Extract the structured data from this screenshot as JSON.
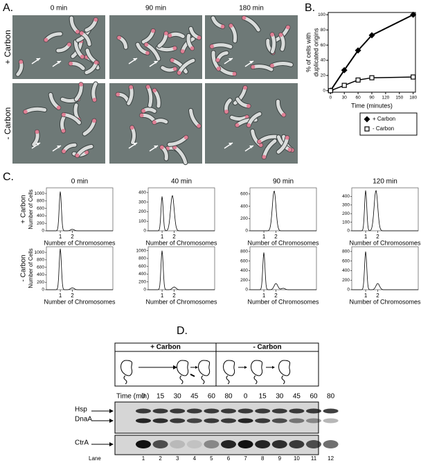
{
  "panel_a": {
    "label": "A.",
    "columns": [
      "0 min",
      "90 min",
      "180 min"
    ],
    "rows": [
      "+ Carbon",
      "- Carbon"
    ]
  },
  "chart_data": {
    "type": "line",
    "label": "B.",
    "x": [
      0,
      30,
      60,
      90,
      180
    ],
    "xlabel": "Time (minutes)",
    "ylabel": [
      "% of cells with",
      "duplicated origins"
    ],
    "xlim": [
      -5,
      185
    ],
    "ylim": [
      -2,
      103
    ],
    "xticks": [
      0,
      30,
      60,
      90,
      120,
      150,
      180
    ],
    "yticks": [
      0,
      20,
      40,
      60,
      80,
      100
    ],
    "legend": "below",
    "series": [
      {
        "name": "+ Carbon",
        "color": "#000000",
        "marker": "diamond",
        "values": [
          0,
          27,
          53,
          73,
          100
        ]
      },
      {
        "name": "- Carbon",
        "color": "#000000",
        "marker": "square",
        "values": [
          0,
          7,
          14,
          17,
          18
        ]
      }
    ]
  },
  "panel_c": {
    "label": "C.",
    "columns": [
      "0 min",
      "40 min",
      "90 min",
      "120 min"
    ],
    "rows": [
      "+ Carbon",
      "- Carbon"
    ],
    "ylabel": "Number of Cells",
    "xlabel": "Number of Chromosomes",
    "xlim": [
      -0.15,
      5.35
    ],
    "xticks": [
      1,
      2
    ],
    "plots": [
      [
        {
          "ylim": [
            0,
            1150
          ],
          "yticks": [
            0,
            200,
            400,
            600,
            800,
            1000
          ],
          "peaks": [
            {
              "x": 1,
              "count": 1050
            },
            {
              "x": 2,
              "count": 40
            }
          ]
        },
        {
          "ylim": [
            0,
            450
          ],
          "yticks": [
            0,
            100,
            200,
            300,
            400
          ],
          "peaks": [
            {
              "x": 1,
              "count": 360
            },
            {
              "x": 1.85,
              "count": 370
            }
          ]
        },
        {
          "ylim": [
            0,
            700
          ],
          "yticks": [
            0,
            200,
            400,
            600
          ],
          "peaks": [
            {
              "x": 1.85,
              "count": 650
            }
          ]
        },
        {
          "ylim": [
            0,
            500
          ],
          "yticks": [
            0,
            100,
            200,
            300,
            400
          ],
          "peaks": [
            {
              "x": 1,
              "count": 470
            },
            {
              "x": 1.85,
              "count": 470
            }
          ]
        }
      ],
      [
        {
          "ylim": [
            0,
            1150
          ],
          "yticks": [
            0,
            200,
            400,
            600,
            800,
            1000
          ],
          "peaks": [
            {
              "x": 1,
              "count": 1100
            },
            {
              "x": 2,
              "count": 50
            }
          ]
        },
        {
          "ylim": [
            0,
            1100
          ],
          "yticks": [
            0,
            200,
            400,
            600,
            800,
            1000
          ],
          "peaks": [
            {
              "x": 1,
              "count": 1000
            },
            {
              "x": 2,
              "count": 70
            }
          ]
        },
        {
          "ylim": [
            0,
            900
          ],
          "yticks": [
            0,
            200,
            400,
            600,
            800
          ],
          "peaks": [
            {
              "x": 1,
              "count": 780
            },
            {
              "x": 2,
              "count": 130
            },
            {
              "x": 2.6,
              "count": 30
            }
          ]
        },
        {
          "ylim": [
            0,
            900
          ],
          "yticks": [
            0,
            200,
            400,
            600,
            800
          ],
          "peaks": [
            {
              "x": 1,
              "count": 800
            },
            {
              "x": 2,
              "count": 130
            }
          ]
        }
      ]
    ]
  },
  "panel_d": {
    "label": "D.",
    "groups": [
      "+ Carbon",
      "- Carbon"
    ],
    "time_label": "Time (min)",
    "times": [
      0,
      15,
      30,
      45,
      60,
      80,
      0,
      15,
      30,
      45,
      60,
      80
    ],
    "bands": [
      "Hsp",
      "DnaA",
      "CtrA"
    ],
    "lane_label": "Lane",
    "lanes": [
      1,
      2,
      3,
      4,
      5,
      6,
      7,
      8,
      9,
      10,
      11,
      12
    ]
  }
}
